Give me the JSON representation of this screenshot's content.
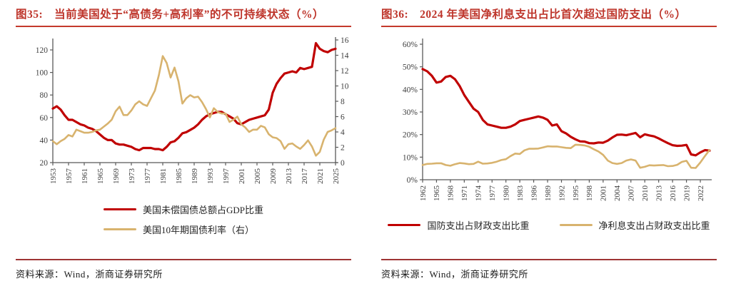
{
  "colors": {
    "series_red": "#C00000",
    "series_gold": "#D8B36E",
    "title_red": "#BE352B",
    "title_rule_red": "#C4392C",
    "source_rule_red": "#9E3434",
    "axis_gray": "#595959"
  },
  "figures": [
    {
      "label": "图35:",
      "title": "当前美国处于“高债务+高利率”的不可持续状态（%）",
      "source": "资料来源：Wind，浙商证券研究所",
      "legend": [
        {
          "name": "美国未偿国债总额占GDP比重",
          "color": "#C00000"
        },
        {
          "name": "美国10年期国债利率（右）",
          "color": "#D8B36E"
        }
      ]
    },
    {
      "label": "图36:",
      "title": "2024 年美国净利息支出占比首次超过国防支出（%）",
      "source": "资料来源：Wind，浙商证券研究所",
      "legend": [
        {
          "name": "国防支出占财政支出比重",
          "color": "#C00000"
        },
        {
          "name": "净利息支出占财政支出比重",
          "color": "#D8B36E"
        }
      ]
    }
  ],
  "chart_data": [
    {
      "type": "line",
      "title": "图35: 当前美国处于“高债务+高利率”的不可持续状态（%）",
      "xlabel": "",
      "ylabel": "",
      "grid": false,
      "legend_position": "bottom",
      "years": [
        1953,
        1954,
        1955,
        1956,
        1957,
        1958,
        1959,
        1960,
        1961,
        1962,
        1963,
        1964,
        1965,
        1966,
        1967,
        1968,
        1969,
        1970,
        1971,
        1972,
        1973,
        1974,
        1975,
        1976,
        1977,
        1978,
        1979,
        1980,
        1981,
        1982,
        1983,
        1984,
        1985,
        1986,
        1987,
        1988,
        1989,
        1990,
        1991,
        1992,
        1993,
        1994,
        1995,
        1996,
        1997,
        1998,
        1999,
        2000,
        2001,
        2002,
        2003,
        2004,
        2005,
        2006,
        2007,
        2008,
        2009,
        2010,
        2011,
        2012,
        2013,
        2014,
        2015,
        2016,
        2017,
        2018,
        2019,
        2020,
        2021,
        2022,
        2023,
        2024,
        2025
      ],
      "x_ticks": [
        1953,
        1957,
        1961,
        1965,
        1969,
        1973,
        1977,
        1981,
        1985,
        1989,
        1993,
        1997,
        2001,
        2005,
        2009,
        2013,
        2017,
        2021,
        2025
      ],
      "left_axis": {
        "min": 20,
        "max": 120,
        "ticks": [
          20,
          40,
          60,
          80,
          100,
          120
        ],
        "suffix": ""
      },
      "right_axis": {
        "min": 0,
        "max": 16,
        "ticks": [
          0,
          2,
          4,
          6,
          8,
          10,
          12,
          14,
          16
        ],
        "suffix": ""
      },
      "series": [
        {
          "name": "美国未偿国债总额占GDP比重",
          "color": "#C00000",
          "axis": "left",
          "values": [
            68,
            70,
            67,
            62,
            58,
            58,
            56,
            54,
            53,
            51,
            50,
            48,
            45,
            42,
            40,
            40,
            37,
            36,
            36,
            35,
            34,
            32,
            31,
            33,
            33,
            33,
            32,
            32,
            31,
            34,
            38,
            39,
            42,
            46,
            47,
            49,
            51,
            54,
            58,
            61,
            63,
            64,
            65,
            65,
            63,
            61,
            59,
            55,
            54,
            56,
            58,
            59,
            60,
            61,
            62,
            67,
            82,
            90,
            95,
            99,
            100,
            101,
            100,
            104,
            103,
            104,
            105,
            126,
            121,
            119,
            118,
            120,
            121
          ]
        },
        {
          "name": "美国10年期国债利率（右）",
          "color": "#D8B36E",
          "axis": "right",
          "values": [
            2.8,
            2.4,
            2.8,
            3.1,
            3.6,
            3.4,
            4.3,
            4.1,
            3.9,
            3.9,
            4.0,
            4.2,
            4.3,
            4.7,
            5.1,
            5.6,
            6.7,
            7.3,
            6.2,
            6.2,
            6.8,
            7.6,
            8.0,
            7.6,
            7.4,
            8.4,
            9.4,
            11.4,
            13.9,
            13.0,
            11.1,
            12.4,
            10.6,
            7.7,
            8.4,
            8.8,
            8.5,
            8.6,
            7.9,
            7.0,
            5.9,
            7.1,
            6.6,
            6.4,
            6.4,
            5.3,
            5.6,
            6.0,
            5.0,
            4.6,
            4.0,
            4.3,
            4.3,
            4.8,
            4.6,
            3.7,
            3.3,
            3.2,
            2.8,
            1.8,
            2.4,
            2.5,
            2.1,
            1.8,
            2.3,
            2.9,
            2.1,
            0.9,
            1.4,
            3.0,
            4.0,
            4.2,
            4.5
          ]
        }
      ]
    },
    {
      "type": "line",
      "title": "图36: 2024 年美国净利息支出占比首次超过国防支出（%）",
      "xlabel": "",
      "ylabel": "",
      "grid": false,
      "legend_position": "bottom",
      "years": [
        1962,
        1963,
        1964,
        1965,
        1966,
        1967,
        1968,
        1969,
        1970,
        1971,
        1972,
        1973,
        1974,
        1975,
        1976,
        1977,
        1978,
        1979,
        1980,
        1981,
        1982,
        1983,
        1984,
        1985,
        1986,
        1987,
        1988,
        1989,
        1990,
        1991,
        1992,
        1993,
        1994,
        1995,
        1996,
        1997,
        1998,
        1999,
        2000,
        2001,
        2002,
        2003,
        2004,
        2005,
        2006,
        2007,
        2008,
        2009,
        2010,
        2011,
        2012,
        2013,
        2014,
        2015,
        2016,
        2017,
        2018,
        2019,
        2020,
        2021,
        2022,
        2023,
        2024
      ],
      "x_ticks": [
        1962,
        1965,
        1968,
        1971,
        1974,
        1977,
        1980,
        1983,
        1986,
        1989,
        1992,
        1995,
        1998,
        2001,
        2004,
        2007,
        2010,
        2013,
        2016,
        2019,
        2022
      ],
      "left_axis": {
        "min": 0,
        "max": 60,
        "ticks": [
          0,
          10,
          20,
          30,
          40,
          50,
          60
        ],
        "suffix": "%"
      },
      "series": [
        {
          "name": "国防支出占财政支出比重",
          "color": "#C00000",
          "axis": "left",
          "values": [
            49,
            48,
            46,
            43,
            43.5,
            45.5,
            46,
            44.5,
            41.5,
            37.5,
            34.5,
            31.5,
            30,
            26.5,
            24.5,
            24,
            23.5,
            23,
            23,
            23.5,
            24.5,
            26,
            26.5,
            27,
            27.5,
            28,
            27.5,
            26.5,
            24,
            24.5,
            21.5,
            20.5,
            19,
            17.9,
            17,
            16.9,
            16.2,
            16.1,
            16.5,
            16.4,
            17.3,
            18.7,
            19.9,
            20,
            19.7,
            20.2,
            20.7,
            18.8,
            20.1,
            19.6,
            19.2,
            18.3,
            17.2,
            16.2,
            15.3,
            15,
            15.1,
            15.4,
            11.2,
            10.8,
            12.1,
            13.1,
            12.9
          ]
        },
        {
          "name": "净利息支出占财政支出比重",
          "color": "#D8B36E",
          "axis": "left",
          "values": [
            6.5,
            7,
            7.1,
            7.3,
            7.3,
            6.5,
            6.2,
            6.9,
            7.4,
            7.2,
            6.9,
            7,
            8,
            7.1,
            7.2,
            7.5,
            8,
            8.7,
            9.1,
            10.5,
            11.6,
            11.4,
            13,
            13.7,
            13.7,
            13.8,
            14.3,
            14.8,
            14.7,
            14.7,
            14.4,
            14.1,
            14,
            15.5,
            15.4,
            15.2,
            14.6,
            13.5,
            12.5,
            11,
            8.5,
            7.4,
            7,
            7.4,
            8.5,
            9,
            8.5,
            5.3,
            5.7,
            6.4,
            6.3,
            6.4,
            6.5,
            6,
            6.1,
            6.6,
            7.9,
            8.4,
            5.3,
            5.2,
            7.6,
            10.5,
            13.2
          ]
        }
      ]
    }
  ]
}
